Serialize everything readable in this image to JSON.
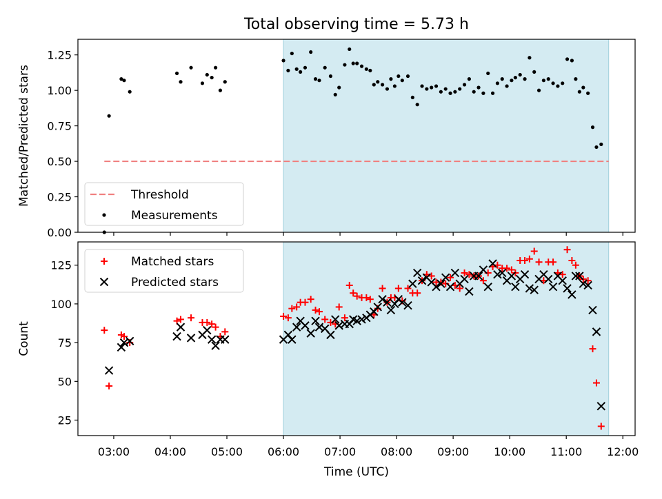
{
  "title": "Total observing time = 5.73 h",
  "chart_data": [
    {
      "type": "scatter",
      "ylabel": "Matched/Predicted stars",
      "ylim": [
        0,
        1.36
      ],
      "yticks": [
        "0.00",
        "0.25",
        "0.50",
        "0.75",
        "1.00",
        "1.25"
      ],
      "shaded_region": [
        "06:00",
        "11:45"
      ],
      "legend": {
        "placement": "lower-left",
        "entries": [
          "Threshold",
          "Measurements"
        ]
      },
      "threshold": {
        "name": "Threshold",
        "y": 0.5,
        "x_range": [
          "02:50",
          "11:45"
        ],
        "color": "#f08080"
      },
      "series": [
        {
          "name": "Measurements",
          "color": "#000000",
          "points": [
            [
              "02:50",
              0.0
            ],
            [
              "02:55",
              0.82
            ],
            [
              "03:08",
              1.08
            ],
            [
              "03:11",
              1.07
            ],
            [
              "03:17",
              0.99
            ],
            [
              "04:07",
              1.12
            ],
            [
              "04:11",
              1.06
            ],
            [
              "04:22",
              1.16
            ],
            [
              "04:34",
              1.05
            ],
            [
              "04:39",
              1.11
            ],
            [
              "04:44",
              1.09
            ],
            [
              "04:48",
              1.16
            ],
            [
              "04:53",
              1.0
            ],
            [
              "04:58",
              1.06
            ],
            [
              "06:00",
              1.21
            ],
            [
              "06:05",
              1.14
            ],
            [
              "06:09",
              1.26
            ],
            [
              "06:14",
              1.15
            ],
            [
              "06:18",
              1.13
            ],
            [
              "06:23",
              1.16
            ],
            [
              "06:29",
              1.27
            ],
            [
              "06:34",
              1.08
            ],
            [
              "06:38",
              1.07
            ],
            [
              "06:44",
              1.16
            ],
            [
              "06:50",
              1.1
            ],
            [
              "06:55",
              0.97
            ],
            [
              "06:59",
              1.02
            ],
            [
              "07:05",
              1.18
            ],
            [
              "07:10",
              1.29
            ],
            [
              "07:14",
              1.19
            ],
            [
              "07:18",
              1.19
            ],
            [
              "07:23",
              1.17
            ],
            [
              "07:28",
              1.15
            ],
            [
              "07:32",
              1.14
            ],
            [
              "07:36",
              1.04
            ],
            [
              "07:40",
              1.06
            ],
            [
              "07:45",
              1.04
            ],
            [
              "07:50",
              1.01
            ],
            [
              "07:54",
              1.08
            ],
            [
              "07:58",
              1.03
            ],
            [
              "08:02",
              1.1
            ],
            [
              "08:06",
              1.07
            ],
            [
              "08:12",
              1.1
            ],
            [
              "08:17",
              0.95
            ],
            [
              "08:22",
              0.9
            ],
            [
              "08:27",
              1.03
            ],
            [
              "08:32",
              1.01
            ],
            [
              "08:37",
              1.02
            ],
            [
              "08:42",
              1.03
            ],
            [
              "08:47",
              0.99
            ],
            [
              "08:52",
              1.01
            ],
            [
              "08:57",
              0.98
            ],
            [
              "09:02",
              0.99
            ],
            [
              "09:07",
              1.01
            ],
            [
              "09:12",
              1.04
            ],
            [
              "09:17",
              1.08
            ],
            [
              "09:22",
              0.99
            ],
            [
              "09:27",
              1.02
            ],
            [
              "09:32",
              0.98
            ],
            [
              "09:37",
              1.12
            ],
            [
              "09:42",
              0.98
            ],
            [
              "09:47",
              1.05
            ],
            [
              "09:52",
              1.08
            ],
            [
              "09:57",
              1.03
            ],
            [
              "10:02",
              1.07
            ],
            [
              "10:06",
              1.09
            ],
            [
              "10:11",
              1.11
            ],
            [
              "10:16",
              1.08
            ],
            [
              "10:21",
              1.23
            ],
            [
              "10:26",
              1.13
            ],
            [
              "10:31",
              1.0
            ],
            [
              "10:36",
              1.07
            ],
            [
              "10:41",
              1.08
            ],
            [
              "10:46",
              1.05
            ],
            [
              "10:51",
              1.03
            ],
            [
              "10:56",
              1.05
            ],
            [
              "11:01",
              1.22
            ],
            [
              "11:06",
              1.21
            ],
            [
              "11:10",
              1.08
            ],
            [
              "11:14",
              0.99
            ],
            [
              "11:18",
              1.02
            ],
            [
              "11:23",
              0.98
            ],
            [
              "11:28",
              0.74
            ],
            [
              "11:32",
              0.6
            ],
            [
              "11:37",
              0.62
            ]
          ]
        }
      ]
    },
    {
      "type": "scatter",
      "ylabel": "Count",
      "xlabel": "Time (UTC)",
      "xticks": [
        "03:00",
        "04:00",
        "05:00",
        "06:00",
        "07:00",
        "08:00",
        "09:00",
        "10:00",
        "11:00",
        "12:00"
      ],
      "ylim": [
        15,
        140
      ],
      "yticks": [
        "25",
        "50",
        "75",
        "100",
        "125"
      ],
      "shaded_region": [
        "06:00",
        "11:45"
      ],
      "legend": {
        "placement": "upper-left",
        "entries": [
          "Matched stars",
          "Predicted stars"
        ]
      },
      "series": [
        {
          "name": "Matched stars",
          "color": "#ff0000",
          "marker": "+",
          "points": [
            [
              "02:50",
              83
            ],
            [
              "02:55",
              47
            ],
            [
              "03:08",
              80
            ],
            [
              "03:11",
              79
            ],
            [
              "03:17",
              75
            ],
            [
              "04:07",
              89
            ],
            [
              "04:11",
              90
            ],
            [
              "04:22",
              91
            ],
            [
              "04:34",
              88
            ],
            [
              "04:39",
              88
            ],
            [
              "04:44",
              87
            ],
            [
              "04:48",
              85
            ],
            [
              "04:53",
              79
            ],
            [
              "04:58",
              82
            ],
            [
              "06:00",
              92
            ],
            [
              "06:05",
              91
            ],
            [
              "06:09",
              97
            ],
            [
              "06:14",
              98
            ],
            [
              "06:18",
              101
            ],
            [
              "06:23",
              101
            ],
            [
              "06:29",
              103
            ],
            [
              "06:34",
              96
            ],
            [
              "06:38",
              95
            ],
            [
              "06:44",
              90
            ],
            [
              "06:50",
              88
            ],
            [
              "06:55",
              87
            ],
            [
              "06:59",
              98
            ],
            [
              "07:05",
              91
            ],
            [
              "07:10",
              112
            ],
            [
              "07:14",
              107
            ],
            [
              "07:18",
              105
            ],
            [
              "07:23",
              104
            ],
            [
              "07:28",
              104
            ],
            [
              "07:32",
              103
            ],
            [
              "07:36",
              93
            ],
            [
              "07:40",
              97
            ],
            [
              "07:45",
              110
            ],
            [
              "07:50",
              101
            ],
            [
              "07:54",
              104
            ],
            [
              "07:58",
              104
            ],
            [
              "08:02",
              110
            ],
            [
              "08:06",
              102
            ],
            [
              "08:12",
              110
            ],
            [
              "08:17",
              107
            ],
            [
              "08:22",
              107
            ],
            [
              "08:27",
              115
            ],
            [
              "08:32",
              119
            ],
            [
              "08:37",
              118
            ],
            [
              "08:42",
              114
            ],
            [
              "08:47",
              114
            ],
            [
              "08:52",
              113
            ],
            [
              "08:57",
              117
            ],
            [
              "09:02",
              112
            ],
            [
              "09:07",
              110
            ],
            [
              "09:12",
              120
            ],
            [
              "09:17",
              119
            ],
            [
              "09:22",
              118
            ],
            [
              "09:27",
              118
            ],
            [
              "09:32",
              115
            ],
            [
              "09:37",
              120
            ],
            [
              "09:42",
              124
            ],
            [
              "09:47",
              125
            ],
            [
              "09:52",
              123
            ],
            [
              "09:57",
              123
            ],
            [
              "10:02",
              122
            ],
            [
              "10:06",
              120
            ],
            [
              "10:11",
              128
            ],
            [
              "10:16",
              128
            ],
            [
              "10:21",
              129
            ],
            [
              "10:26",
              134
            ],
            [
              "10:31",
              127
            ],
            [
              "10:36",
              115
            ],
            [
              "10:41",
              127
            ],
            [
              "10:46",
              127
            ],
            [
              "10:51",
              120
            ],
            [
              "10:56",
              119
            ],
            [
              "11:01",
              135
            ],
            [
              "11:06",
              128
            ],
            [
              "11:10",
              125
            ],
            [
              "11:14",
              118
            ],
            [
              "11:18",
              116
            ],
            [
              "11:23",
              115
            ],
            [
              "11:28",
              71
            ],
            [
              "11:32",
              49
            ],
            [
              "11:37",
              21
            ]
          ]
        },
        {
          "name": "Predicted stars",
          "color": "#000000",
          "marker": "x",
          "points": [
            [
              "02:55",
              57
            ],
            [
              "03:08",
              72
            ],
            [
              "03:11",
              75
            ],
            [
              "03:17",
              76
            ],
            [
              "04:07",
              79
            ],
            [
              "04:11",
              85
            ],
            [
              "04:22",
              78
            ],
            [
              "04:34",
              80
            ],
            [
              "04:39",
              83
            ],
            [
              "04:44",
              77
            ],
            [
              "04:48",
              73
            ],
            [
              "04:53",
              77
            ],
            [
              "04:58",
              77
            ],
            [
              "06:00",
              77
            ],
            [
              "06:05",
              80
            ],
            [
              "06:09",
              77
            ],
            [
              "06:14",
              85
            ],
            [
              "06:18",
              89
            ],
            [
              "06:23",
              86
            ],
            [
              "06:29",
              81
            ],
            [
              "06:34",
              89
            ],
            [
              "06:38",
              85
            ],
            [
              "06:44",
              84
            ],
            [
              "06:50",
              80
            ],
            [
              "06:55",
              90
            ],
            [
              "06:59",
              86
            ],
            [
              "07:05",
              87
            ],
            [
              "07:10",
              87
            ],
            [
              "07:14",
              90
            ],
            [
              "07:18",
              89
            ],
            [
              "07:23",
              90
            ],
            [
              "07:28",
              91
            ],
            [
              "07:32",
              93
            ],
            [
              "07:36",
              95
            ],
            [
              "07:40",
              98
            ],
            [
              "07:45",
              103
            ],
            [
              "07:50",
              101
            ],
            [
              "07:54",
              96
            ],
            [
              "07:58",
              100
            ],
            [
              "08:02",
              103
            ],
            [
              "08:06",
              101
            ],
            [
              "08:12",
              99
            ],
            [
              "08:17",
              113
            ],
            [
              "08:22",
              120
            ],
            [
              "08:27",
              115
            ],
            [
              "08:32",
              117
            ],
            [
              "08:37",
              114
            ],
            [
              "08:42",
              111
            ],
            [
              "08:47",
              113
            ],
            [
              "08:52",
              117
            ],
            [
              "08:57",
              111
            ],
            [
              "09:02",
              120
            ],
            [
              "09:07",
              113
            ],
            [
              "09:12",
              116
            ],
            [
              "09:17",
              108
            ],
            [
              "09:22",
              118
            ],
            [
              "09:27",
              118
            ],
            [
              "09:32",
              122
            ],
            [
              "09:37",
              111
            ],
            [
              "09:42",
              126
            ],
            [
              "09:47",
              119
            ],
            [
              "09:52",
              120
            ],
            [
              "09:57",
              115
            ],
            [
              "10:02",
              118
            ],
            [
              "10:06",
              111
            ],
            [
              "10:11",
              116
            ],
            [
              "10:16",
              119
            ],
            [
              "10:21",
              110
            ],
            [
              "10:26",
              109
            ],
            [
              "10:31",
              116
            ],
            [
              "10:36",
              119
            ],
            [
              "10:41",
              116
            ],
            [
              "10:46",
              111
            ],
            [
              "10:51",
              118
            ],
            [
              "10:56",
              115
            ],
            [
              "11:01",
              110
            ],
            [
              "11:06",
              106
            ],
            [
              "11:10",
              118
            ],
            [
              "11:14",
              118
            ],
            [
              "11:18",
              113
            ],
            [
              "11:23",
              112
            ],
            [
              "11:28",
              96
            ],
            [
              "11:32",
              82
            ],
            [
              "11:37",
              34
            ]
          ]
        }
      ]
    }
  ]
}
